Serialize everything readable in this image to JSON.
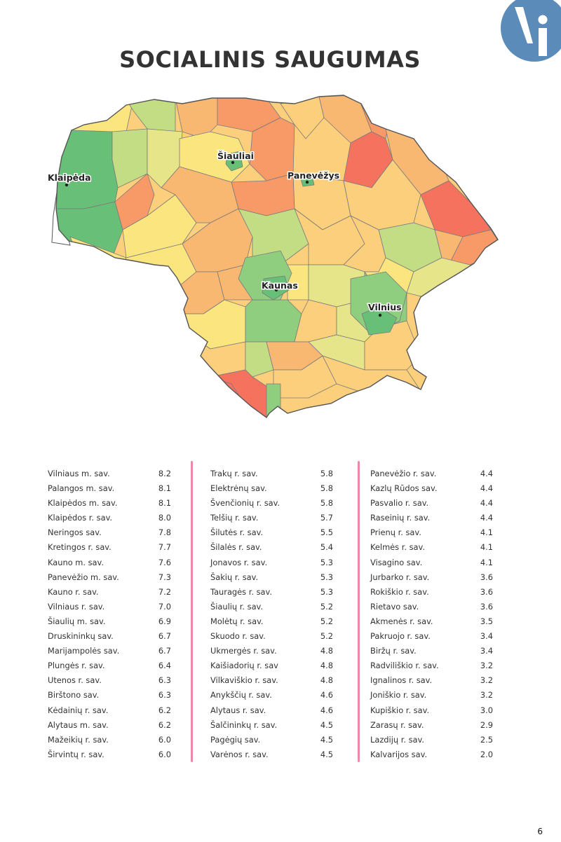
{
  "title": "SOCIALINIS SAUGUMAS",
  "page_number": "6",
  "logo": {
    "icon": "vi-logo-icon",
    "color": "#5b8bb8"
  },
  "map": {
    "cities": [
      {
        "name": "Šiauliai"
      },
      {
        "name": "Klaipėda"
      },
      {
        "name": "Panevėžys"
      },
      {
        "name": "Kaunas"
      },
      {
        "name": "Vilnius"
      }
    ],
    "colors": [
      "#68bf77",
      "#8fce7f",
      "#c3dd85",
      "#e6e58a",
      "#fae57f",
      "#fbcf7c",
      "#f8b872",
      "#f79a68",
      "#f5735e"
    ]
  },
  "columns": [
    {
      "rows": [
        {
          "name": "Vilniaus m. sav.",
          "value": "8.2"
        },
        {
          "name": "Palangos m. sav.",
          "value": "8.1"
        },
        {
          "name": "Klaipėdos m. sav.",
          "value": "8.1"
        },
        {
          "name": "Klaipėdos r. sav.",
          "value": "8.0"
        },
        {
          "name": "Neringos sav.",
          "value": "7.8"
        },
        {
          "name": "Kretingos r. sav.",
          "value": "7.7"
        },
        {
          "name": "Kauno m. sav.",
          "value": "7.6"
        },
        {
          "name": "Panevėžio m. sav.",
          "value": "7.3"
        },
        {
          "name": "Kauno r. sav.",
          "value": "7.2"
        },
        {
          "name": "Vilniaus r. sav.",
          "value": "7.0"
        },
        {
          "name": "Šiaulių m. sav.",
          "value": "6.9"
        },
        {
          "name": "Druskininkų sav.",
          "value": "6.7"
        },
        {
          "name": "Marijampolės sav.",
          "value": "6.7"
        },
        {
          "name": "Plungės r. sav.",
          "value": "6.4"
        },
        {
          "name": "Utenos r. sav.",
          "value": "6.3"
        },
        {
          "name": "Birštono sav.",
          "value": "6.3"
        },
        {
          "name": "Kėdainių r. sav.",
          "value": "6.2"
        },
        {
          "name": "Alytaus m. sav.",
          "value": "6.2"
        },
        {
          "name": "Mažeikių r. sav.",
          "value": "6.0"
        },
        {
          "name": "Širvintų r. sav.",
          "value": "6.0"
        }
      ]
    },
    {
      "rows": [
        {
          "name": "Trakų r. sav.",
          "value": "5.8"
        },
        {
          "name": "Elektrėnų sav.",
          "value": "5.8"
        },
        {
          "name": "Švenčionių r. sav.",
          "value": "5.8"
        },
        {
          "name": "Telšių r. sav.",
          "value": "5.7"
        },
        {
          "name": "Šilutės r. sav.",
          "value": "5.5"
        },
        {
          "name": "Šilalės r. sav.",
          "value": "5.4"
        },
        {
          "name": "Jonavos r. sav.",
          "value": "5.3"
        },
        {
          "name": "Šakių r. sav.",
          "value": "5.3"
        },
        {
          "name": "Tauragės r. sav.",
          "value": "5.3"
        },
        {
          "name": "Šiaulių r. sav.",
          "value": "5.2"
        },
        {
          "name": "Molėtų r. sav.",
          "value": "5.2"
        },
        {
          "name": "Skuodo r. sav.",
          "value": "5.2"
        },
        {
          "name": "Ukmergės r. sav.",
          "value": "4.8"
        },
        {
          "name": "Kaišiadorių r. sav",
          "value": "4.8"
        },
        {
          "name": "Vilkaviškio r. sav.",
          "value": "4.8"
        },
        {
          "name": "Anykščių r. sav.",
          "value": "4.6"
        },
        {
          "name": "Alytaus r. sav.",
          "value": "4.6"
        },
        {
          "name": "Šalčininkų r. sav.",
          "value": "4.5"
        },
        {
          "name": "Pagėgių sav.",
          "value": "4.5"
        },
        {
          "name": "Varėnos r. sav.",
          "value": "4.5"
        }
      ]
    },
    {
      "rows": [
        {
          "name": "Panevėžio r. sav.",
          "value": "4.4"
        },
        {
          "name": "Kazlų Rūdos sav.",
          "value": "4.4"
        },
        {
          "name": "Pasvalio r. sav.",
          "value": "4.4"
        },
        {
          "name": "Raseinių r. sav.",
          "value": "4.4"
        },
        {
          "name": "Prienų r. sav.",
          "value": "4.1"
        },
        {
          "name": "Kelmės r. sav.",
          "value": "4.1"
        },
        {
          "name": "Visagino sav.",
          "value": "4.1"
        },
        {
          "name": "Jurbarko r. sav.",
          "value": "3.6"
        },
        {
          "name": "Rokiškio r. sav.",
          "value": "3.6"
        },
        {
          "name": "Rietavo sav.",
          "value": "3.6"
        },
        {
          "name": "Akmenės r. sav.",
          "value": "3.5"
        },
        {
          "name": "Pakruojo r. sav.",
          "value": "3.4"
        },
        {
          "name": "Biržų r. sav.",
          "value": "3.4"
        },
        {
          "name": "Radviliškio r. sav.",
          "value": "3.2"
        },
        {
          "name": "Ignalinos r. sav.",
          "value": "3.2"
        },
        {
          "name": "Joniškio r. sav.",
          "value": "3.2"
        },
        {
          "name": "Kupiškio r. sav.",
          "value": "3.0"
        },
        {
          "name": "Zarasų r. sav.",
          "value": "2.9"
        },
        {
          "name": "Lazdijų r. sav.",
          "value": "2.5"
        },
        {
          "name": "Kalvarijos sav.",
          "value": "2.0"
        }
      ]
    }
  ]
}
